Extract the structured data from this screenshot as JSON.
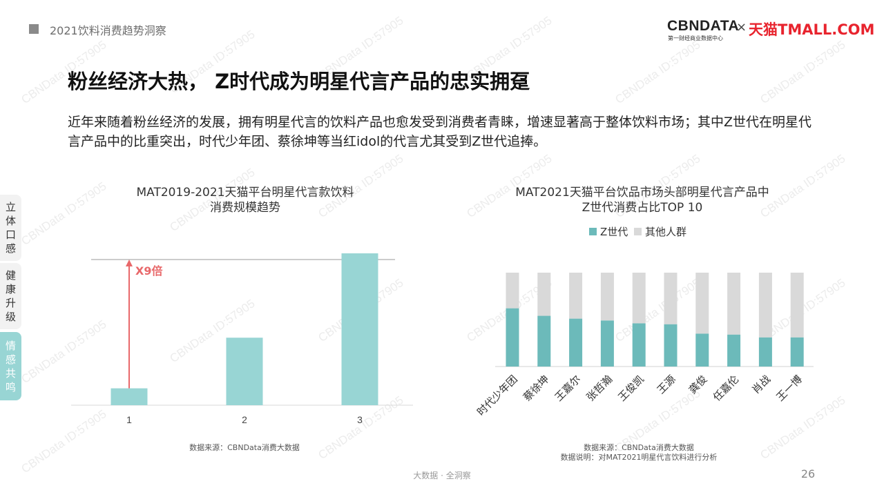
{
  "header": {
    "section_title": "2021饮料消费趋势洞察",
    "logo_cbn": "CBNDATA",
    "logo_cbn_sub": "第一财经商业数据中心",
    "logo_times": "×",
    "logo_tmall": "天猫TMALL.COM",
    "brand_color": "#e8242e"
  },
  "main": {
    "title": "粉丝经济大热， Z时代成为明星代言产品的忠实拥趸",
    "description": "近年来随着粉丝经济的发展，拥有明星代言的饮料产品也愈发受到消费者青睐，增速显著高于整体饮料市场；其中Z世代在明星代言产品中的比重突出，时代少年团、蔡徐坤等当红idol的代言尤其受到Z世代追捧。"
  },
  "side_tabs": [
    {
      "label": "立体口感",
      "active": false
    },
    {
      "label": "健康升级",
      "active": false
    },
    {
      "label": "情感共鸣",
      "active": true
    }
  ],
  "watermark": "CBNData ID:57905",
  "left_panel": {
    "title_line1": "MAT2019-2021天猫平台明星代言款饮料",
    "title_line2": "消费规模趋势",
    "source": "数据来源：CBNData消费大数据"
  },
  "right_panel": {
    "title_line1": "MAT2021天猫平台饮品市场头部明星代言产品中",
    "title_line2": "Z世代消费占比TOP 10",
    "source_line1": "数据来源：CBNData消费大数据",
    "source_line2": "数据说明：对MAT2021明星代言饮料进行分析"
  },
  "chart_data": [
    {
      "type": "bar",
      "title": "MAT2019-2021天猫平台明星代言款饮料消费规模趋势",
      "categories": [
        "1",
        "2",
        "3"
      ],
      "values": [
        1,
        4,
        9
      ],
      "annotation": "X9倍",
      "colors": {
        "bar": "#98d5d4",
        "annotation": "#e8686a"
      }
    },
    {
      "type": "bar",
      "stacked": true,
      "percent": true,
      "title": "MAT2021天猫平台饮品市场头部明星代言产品中Z世代消费占比TOP 10",
      "categories": [
        "时代少年团",
        "蔡徐坤",
        "王嘉尔",
        "张哲瀚",
        "王俊凯",
        "王源",
        "龚俊",
        "任嘉伦",
        "肖战",
        "王一博"
      ],
      "series": [
        {
          "name": "Z世代",
          "values": [
            62,
            54,
            51,
            49,
            46,
            45,
            35,
            34,
            31,
            31
          ],
          "color": "#6cbaba"
        },
        {
          "name": "其他人群",
          "values": [
            38,
            46,
            49,
            51,
            54,
            55,
            65,
            66,
            69,
            69
          ],
          "color": "#d9d9d9"
        }
      ],
      "legend": "top"
    }
  ],
  "footer": {
    "center": "大数据 · 全洞察",
    "page": "26"
  }
}
